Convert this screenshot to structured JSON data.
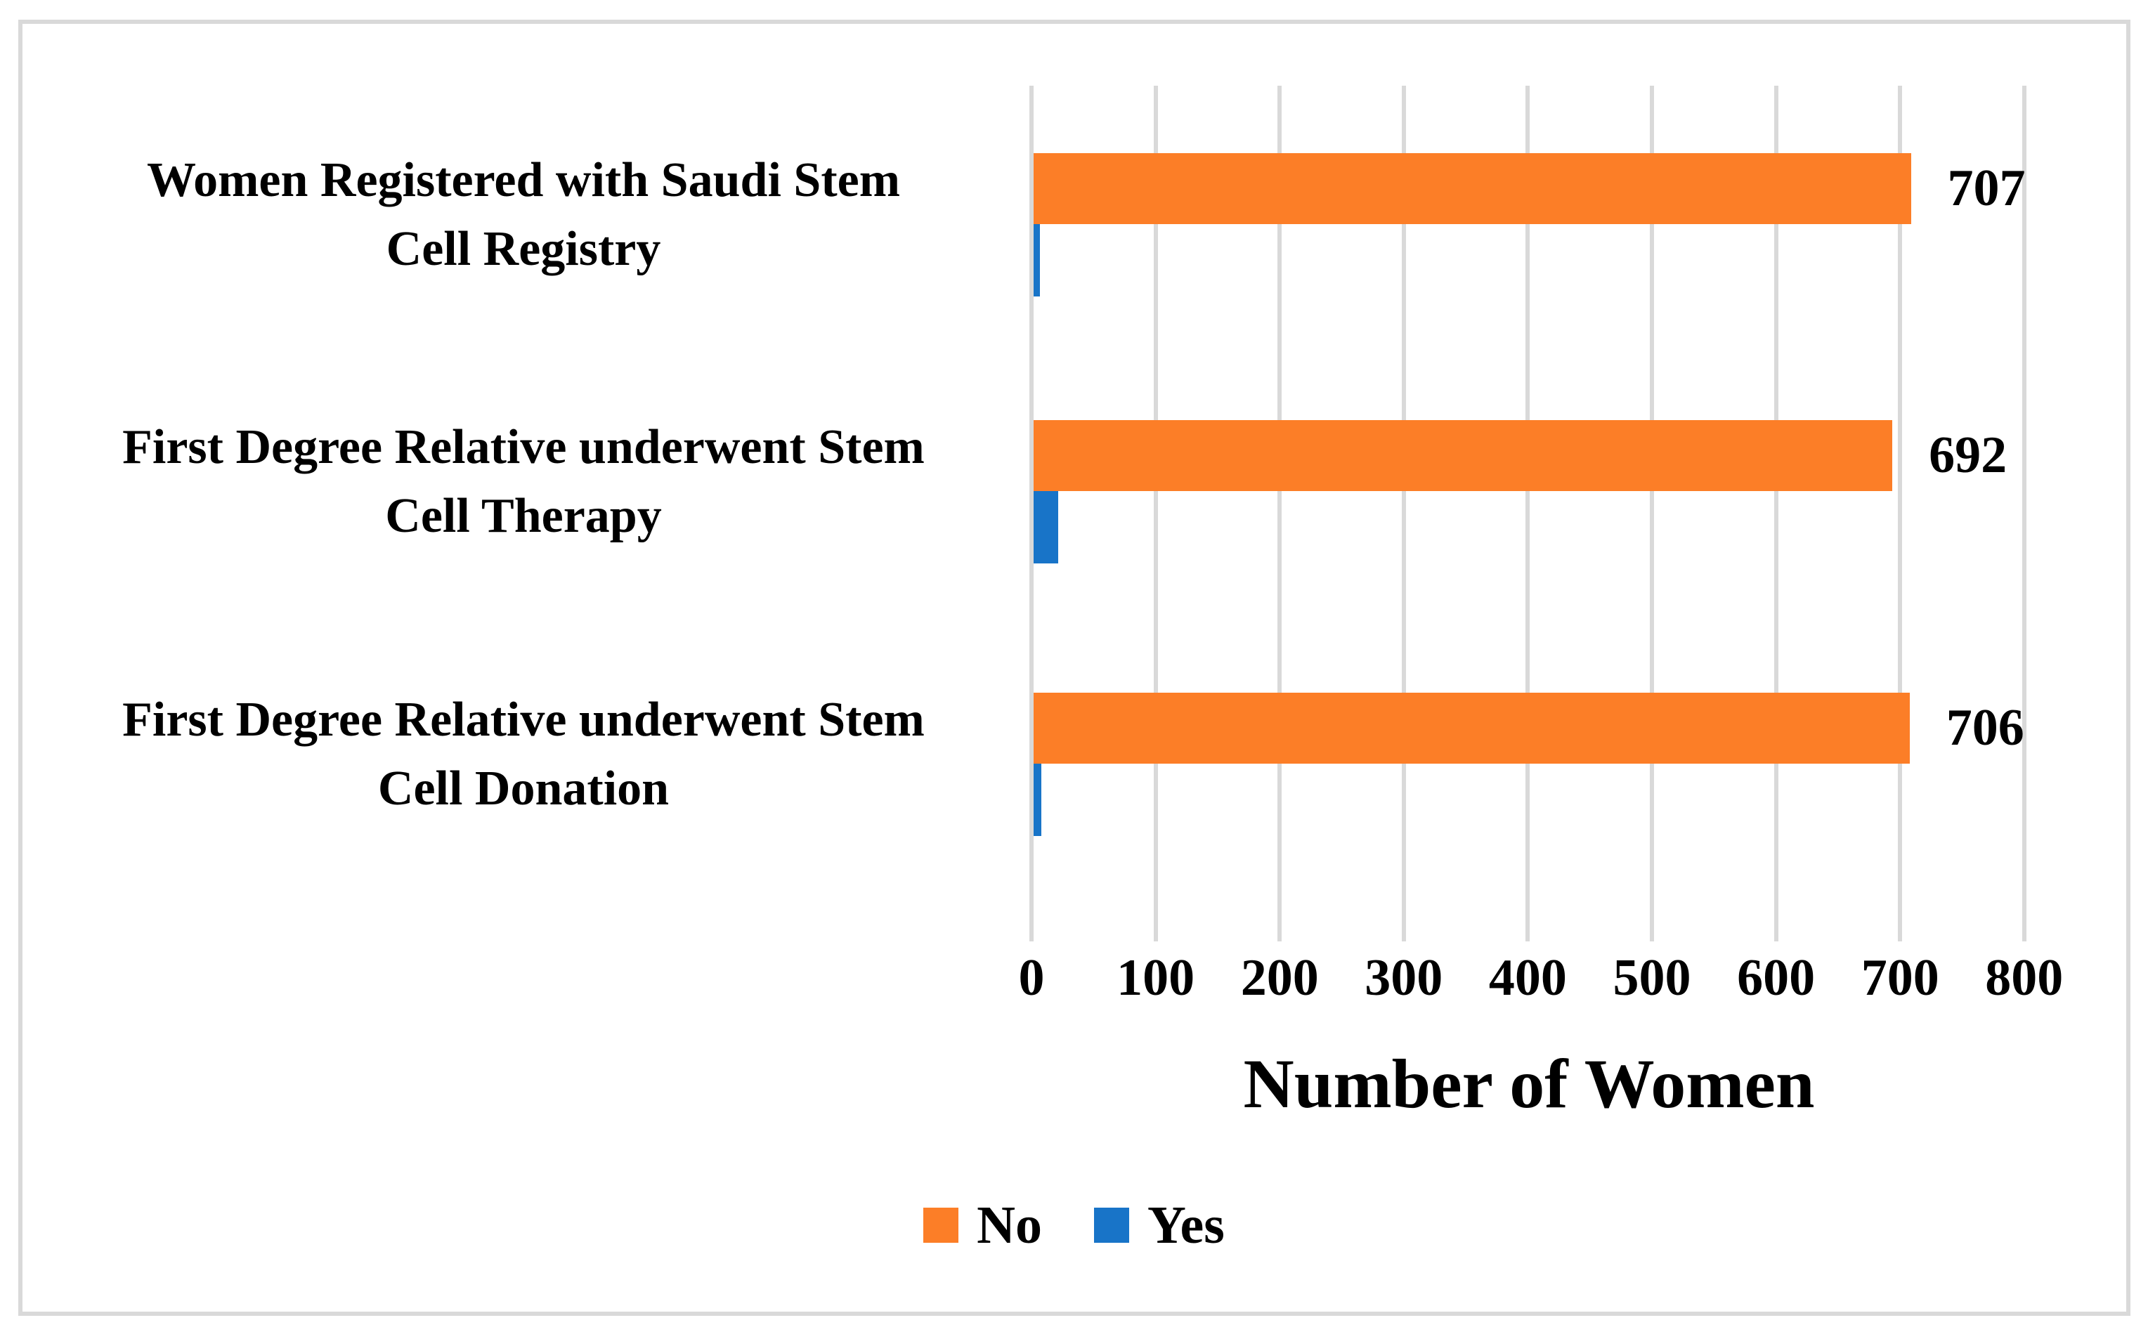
{
  "figure": {
    "kind": "horizontal grouped bar chart",
    "background": "#ffffff",
    "border_color": "#d9d9d9"
  },
  "chart_data": {
    "type": "bar",
    "orientation": "horizontal",
    "categories": [
      "Women Registered with Saudi Stem\nCell Registry",
      "First Degree Relative underwent Stem\nCell Therapy",
      "First Degree Relative underwent Stem\nCell Donation"
    ],
    "series": [
      {
        "name": "No",
        "color": "#fc7e27",
        "values": [
          707,
          692,
          706
        ],
        "data_labels": [
          "707",
          "692",
          "706"
        ]
      },
      {
        "name": "Yes",
        "color": "#1874c8",
        "values": [
          5,
          20,
          6
        ],
        "data_labels": [
          "",
          "",
          ""
        ]
      }
    ],
    "xlabel": "Number of Women",
    "xlim": [
      0,
      800
    ],
    "xticks": [
      0,
      100,
      200,
      300,
      400,
      500,
      600,
      700,
      800
    ],
    "grid": "vertical-gridlines-on",
    "gridline_color": "#d9d9d9",
    "legend_position": "bottom-center"
  },
  "axis": {
    "title": "Number of Women"
  },
  "legend": {
    "items": [
      {
        "label": "No",
        "color": "#fc7e27"
      },
      {
        "label": "Yes",
        "color": "#1874c8"
      }
    ]
  }
}
